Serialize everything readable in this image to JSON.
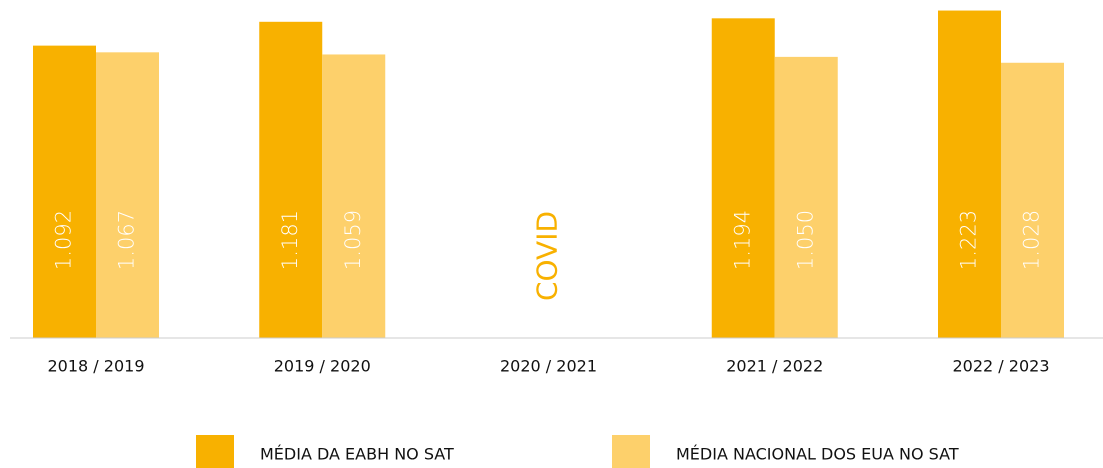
{
  "chart_data": {
    "type": "bar",
    "categories": [
      "2018 / 2019",
      "2019 / 2020",
      "2020 / 2021",
      "2021 / 2022",
      "2022 / 2023"
    ],
    "series": [
      {
        "name": "MÉDIA DA EABH NO SAT",
        "color": "#f8b100",
        "values": [
          1092,
          1181,
          null,
          1194,
          1223
        ],
        "value_labels": [
          "1.092",
          "1.181",
          null,
          "1.194",
          "1.223"
        ]
      },
      {
        "name": "MÉDIA NACIONAL DOS EUA NO SAT",
        "color": "#fdd06b",
        "values": [
          1067,
          1059,
          null,
          1050,
          1028
        ],
        "value_labels": [
          "1.067",
          "1.059",
          null,
          "1.050",
          "1.028"
        ]
      }
    ],
    "annotations": [
      {
        "text": "COVID",
        "category": 2,
        "color": "#f8b100"
      }
    ],
    "ylim": [
      0,
      1240
    ],
    "grid": false,
    "legend": "bottom"
  }
}
